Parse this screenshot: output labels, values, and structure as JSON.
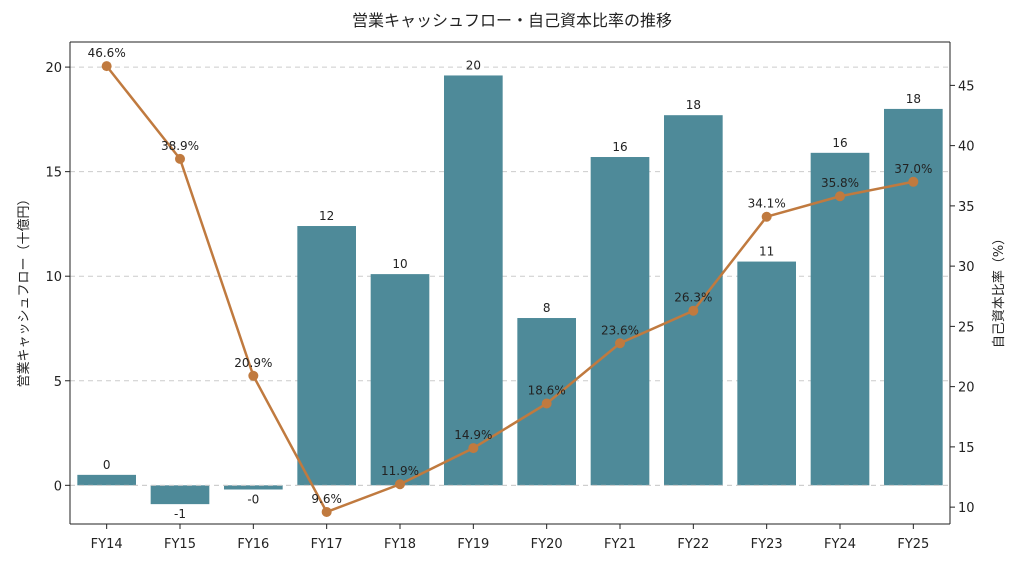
{
  "chart_data": {
    "type": "bar",
    "title": "営業キャッシュフロー・自己資本比率の推移",
    "xlabel": "",
    "categories": [
      "FY14",
      "FY15",
      "FY16",
      "FY17",
      "FY18",
      "FY19",
      "FY20",
      "FY21",
      "FY22",
      "FY23",
      "FY24",
      "FY25"
    ],
    "bar_series": {
      "name": "営業キャッシュフロー（十億円）",
      "values": [
        0.5,
        -0.9,
        -0.2,
        12.4,
        10.1,
        19.6,
        8.0,
        15.7,
        17.7,
        10.7,
        15.9,
        18.0
      ],
      "labels": [
        "0",
        "-1",
        "-0",
        "12",
        "10",
        "20",
        "8",
        "16",
        "18",
        "11",
        "16",
        "18"
      ],
      "color": "#4e8a99"
    },
    "line_series": {
      "name": "自己資本比率（%）",
      "values": [
        46.6,
        38.9,
        20.9,
        9.6,
        11.9,
        14.9,
        18.6,
        23.6,
        26.3,
        34.1,
        35.8,
        37.0
      ],
      "labels": [
        "46.6%",
        "38.9%",
        "20.9%",
        "9.6%",
        "11.9%",
        "14.9%",
        "18.6%",
        "23.6%",
        "26.3%",
        "34.1%",
        "35.8%",
        "37.0%"
      ],
      "color": "#c07a3f"
    },
    "left_axis": {
      "label": "営業キャッシュフロー（十億円）",
      "ylim": [
        -1.85,
        21.2
      ],
      "ticks": [
        0,
        5,
        10,
        15,
        20
      ],
      "tick_labels": [
        "0",
        "5",
        "10",
        "15",
        "20"
      ]
    },
    "right_axis": {
      "label": "自己資本比率（%）",
      "ylim": [
        8.6,
        48.6
      ],
      "ticks": [
        10,
        15,
        20,
        25,
        30,
        35,
        40,
        45
      ],
      "tick_labels": [
        "10",
        "15",
        "20",
        "25",
        "30",
        "35",
        "40",
        "45"
      ]
    },
    "grid": "horizontal-dashed"
  }
}
